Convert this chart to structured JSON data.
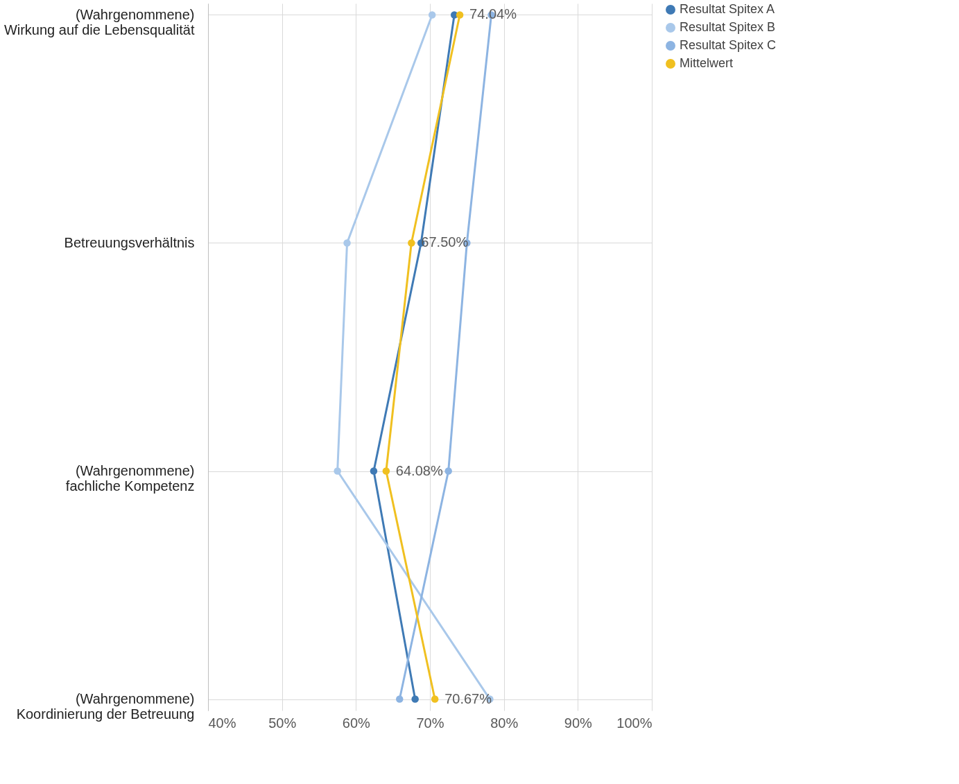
{
  "chart_data": {
    "type": "line",
    "orientation": "horizontal",
    "categories": [
      "(Wahrgenommene) Wirkung auf die Lebensqualität",
      "Betreuungsverhältnis",
      "(Wahrgenommene) fachliche Kompetenz",
      "(Wahrgenommene) Koordinierung der Betreuung"
    ],
    "series": [
      {
        "name": "Resultat Spitex A",
        "color": "#3f7ab5",
        "values": [
          73.3,
          68.8,
          62.4,
          68.0
        ]
      },
      {
        "name": "Resultat Spitex B",
        "color": "#a9c8ea",
        "values": [
          70.3,
          58.8,
          57.5,
          78.1
        ]
      },
      {
        "name": "Resultat Spitex C",
        "color": "#8db4e2",
        "values": [
          78.3,
          75.0,
          72.5,
          65.9
        ]
      },
      {
        "name": "Mittelwert",
        "color": "#f0c020",
        "values": [
          74.04,
          67.5,
          64.08,
          70.67
        ],
        "value_labels": [
          "74.04%",
          "67.50%",
          "64.08%",
          "70.67%"
        ]
      }
    ],
    "xlim": [
      40,
      100
    ],
    "xticks": [
      {
        "value": 40,
        "label": "40%"
      },
      {
        "value": 50,
        "label": "50%"
      },
      {
        "value": 60,
        "label": "60%"
      },
      {
        "value": 70,
        "label": "70%"
      },
      {
        "value": 80,
        "label": "80%"
      },
      {
        "value": 90,
        "label": "90%"
      },
      {
        "value": 100,
        "label": "100%"
      }
    ],
    "grid": true,
    "legend": "right",
    "marker": "circle",
    "line_style": "solid"
  }
}
